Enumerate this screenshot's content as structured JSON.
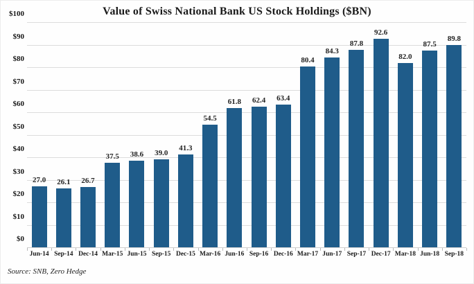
{
  "chart_data": {
    "type": "bar",
    "title": "Value of Swiss National Bank US Stock Holdings ($BN)",
    "categories": [
      "Jun-14",
      "Sep-14",
      "Dec-14",
      "Mar-15",
      "Jun-15",
      "Sep-15",
      "Dec-15",
      "Mar-16",
      "Jun-16",
      "Sep-16",
      "Dec-16",
      "Mar-17",
      "Jun-17",
      "Sep-17",
      "Dec-17",
      "Mar-18",
      "Jun-18",
      "Sep-18"
    ],
    "values": [
      27.0,
      26.1,
      26.7,
      37.5,
      38.6,
      39.0,
      41.3,
      54.5,
      61.8,
      62.4,
      63.4,
      80.4,
      84.3,
      87.8,
      92.6,
      82.0,
      87.5,
      89.8
    ],
    "value_labels": [
      "27.0",
      "26.1",
      "26.7",
      "37.5",
      "38.6",
      "39.0",
      "41.3",
      "54.5",
      "61.8",
      "62.4",
      "63.4",
      "80.4",
      "84.3",
      "87.8",
      "92.6",
      "82.0",
      "87.5",
      "89.8"
    ],
    "ylabel": "",
    "xlabel": "",
    "ylim": [
      0,
      100
    ],
    "ytick_step": 10,
    "ytick_prefix": "$",
    "grid": true,
    "legend": "none",
    "bar_color": "#1f5c8a",
    "source": "Source: SNB, Zero Hedge"
  }
}
